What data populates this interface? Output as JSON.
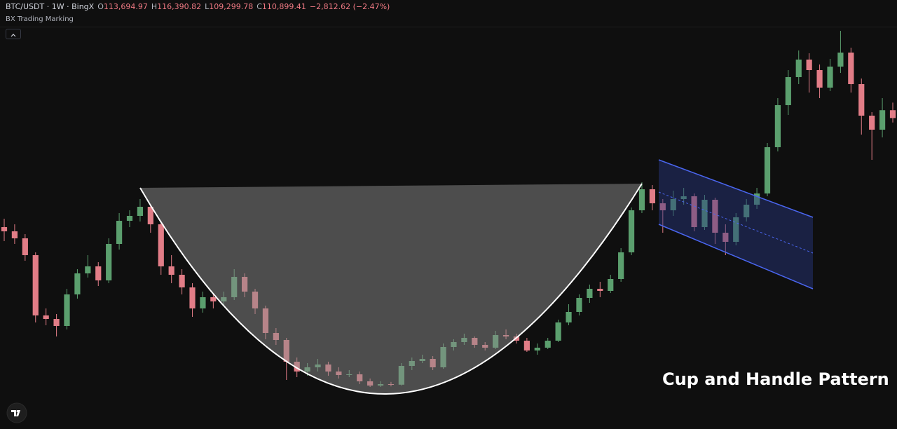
{
  "header": {
    "symbol": "BTC/USDT · 1W · BingX",
    "ohlc": [
      {
        "key": "O",
        "value": "113,694.97"
      },
      {
        "key": "H",
        "value": "116,390.82"
      },
      {
        "key": "L",
        "value": "109,299.78"
      },
      {
        "key": "C",
        "value": "110,899.41"
      }
    ],
    "change": "−2,812.62 (−2.47%)",
    "indicator": "BX Trading Marking"
  },
  "chart_data": {
    "type": "candlestick",
    "annotation": "Cup and Handle Pattern",
    "up_color": "#5b9f6e",
    "down_color": "#e27d87",
    "ylim": [
      0,
      153000
    ],
    "candles": [
      [
        72000,
        75000,
        67000,
        70500
      ],
      [
        70500,
        73000,
        66000,
        68000
      ],
      [
        68000,
        69500,
        60000,
        62000
      ],
      [
        62000,
        63000,
        38000,
        40500
      ],
      [
        40500,
        43000,
        37000,
        39250
      ],
      [
        39250,
        41000,
        33000,
        36750
      ],
      [
        36750,
        50000,
        35500,
        48000
      ],
      [
        48000,
        57000,
        46500,
        55500
      ],
      [
        55500,
        62000,
        54000,
        58000
      ],
      [
        58000,
        59500,
        51000,
        53000
      ],
      [
        53000,
        68000,
        52000,
        66000
      ],
      [
        66000,
        77000,
        64000,
        74250
      ],
      [
        74250,
        78000,
        72000,
        76000
      ],
      [
        76000,
        82000,
        74000,
        79250
      ],
      [
        79250,
        80000,
        70000,
        73000
      ],
      [
        73000,
        74000,
        55000,
        58000
      ],
      [
        58000,
        62000,
        52000,
        55000
      ],
      [
        55000,
        57000,
        48000,
        50500
      ],
      [
        50500,
        52000,
        40000,
        43000
      ],
      [
        43000,
        49000,
        41500,
        47000
      ],
      [
        47000,
        48500,
        43000,
        45500
      ],
      [
        45500,
        49000,
        44000,
        47000
      ],
      [
        47000,
        57000,
        46000,
        54250
      ],
      [
        54250,
        55500,
        47000,
        49000
      ],
      [
        49000,
        50000,
        41000,
        43000
      ],
      [
        43000,
        44000,
        32000,
        34250
      ],
      [
        34250,
        36000,
        30000,
        31750
      ],
      [
        31750,
        32500,
        17500,
        24000
      ],
      [
        24000,
        25500,
        18500,
        20500
      ],
      [
        20500,
        23500,
        19000,
        22000
      ],
      [
        22000,
        25000,
        20500,
        23000
      ],
      [
        23000,
        24000,
        19000,
        20500
      ],
      [
        20500,
        22000,
        18000,
        19250
      ],
      [
        19250,
        21000,
        18500,
        19500
      ],
      [
        19500,
        20500,
        16000,
        17000
      ],
      [
        17000,
        18000,
        15000,
        15500
      ],
      [
        15500,
        17000,
        15000,
        16000
      ],
      [
        16000,
        16800,
        15200,
        15800
      ],
      [
        15800,
        23500,
        15500,
        22500
      ],
      [
        22500,
        25500,
        21000,
        24250
      ],
      [
        24250,
        26500,
        23500,
        25000
      ],
      [
        25000,
        26000,
        21000,
        22000
      ],
      [
        22000,
        30500,
        21500,
        29250
      ],
      [
        29250,
        32000,
        28000,
        31000
      ],
      [
        31000,
        34000,
        30000,
        32500
      ],
      [
        32500,
        33000,
        29000,
        30000
      ],
      [
        30000,
        31000,
        28000,
        29000
      ],
      [
        29000,
        35000,
        28500,
        33500
      ],
      [
        33500,
        35500,
        32000,
        33000
      ],
      [
        33000,
        34000,
        30500,
        31500
      ],
      [
        31500,
        32500,
        27500,
        28000
      ],
      [
        28000,
        30500,
        26500,
        29000
      ],
      [
        29000,
        32500,
        28500,
        31500
      ],
      [
        31500,
        39000,
        31000,
        38000
      ],
      [
        38000,
        44500,
        37000,
        41750
      ],
      [
        41750,
        48000,
        40500,
        46750
      ],
      [
        46750,
        51500,
        45000,
        50000
      ],
      [
        50000,
        52500,
        47000,
        49250
      ],
      [
        49250,
        55000,
        48500,
        53500
      ],
      [
        53500,
        64500,
        52500,
        63000
      ],
      [
        63000,
        79000,
        62000,
        78000
      ],
      [
        78000,
        88000,
        77000,
        85500
      ],
      [
        85500,
        87000,
        78000,
        80500
      ],
      [
        80500,
        82000,
        70000,
        78000
      ],
      [
        78000,
        85000,
        76000,
        82000
      ],
      [
        82000,
        86000,
        80000,
        83000
      ],
      [
        83000,
        84000,
        70500,
        72000
      ],
      [
        72000,
        83500,
        71000,
        81750
      ],
      [
        81750,
        82500,
        66000,
        70000
      ],
      [
        70000,
        73000,
        62000,
        66750
      ],
      [
        66750,
        77000,
        65500,
        75500
      ],
      [
        75500,
        82000,
        74000,
        80000
      ],
      [
        80000,
        86000,
        78500,
        84000
      ],
      [
        84000,
        102000,
        83000,
        100500
      ],
      [
        100500,
        118000,
        99000,
        115500
      ],
      [
        115500,
        128000,
        112000,
        125500
      ],
      [
        125500,
        135000,
        123000,
        131750
      ],
      [
        131750,
        134000,
        120000,
        128000
      ],
      [
        128000,
        130000,
        118000,
        121750
      ],
      [
        121750,
        132000,
        120500,
        129250
      ],
      [
        129250,
        142000,
        127000,
        134250
      ],
      [
        134250,
        136000,
        120000,
        123000
      ],
      [
        123000,
        125000,
        105000,
        111750
      ],
      [
        111750,
        113000,
        96000,
        106750
      ],
      [
        106750,
        118000,
        104000,
        113694.97
      ],
      [
        113694.97,
        116390.82,
        109299.78,
        110899.41
      ]
    ]
  }
}
